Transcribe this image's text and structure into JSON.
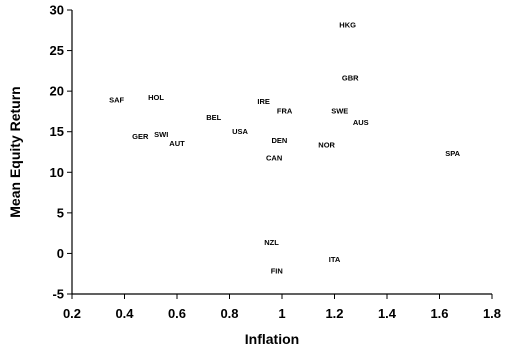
{
  "chart_data": {
    "type": "scatter",
    "title": "",
    "xlabel": "Inflation",
    "ylabel": "Mean Equity Return",
    "xlim": [
      0.2,
      1.8
    ],
    "ylim": [
      -5,
      30
    ],
    "x_ticks": [
      "0.2",
      "0.4",
      "0.6",
      "0.8",
      "1",
      "1.2",
      "1.4",
      "1.6",
      "1.8"
    ],
    "y_ticks": [
      "-5",
      "0",
      "5",
      "10",
      "15",
      "20",
      "25",
      "30"
    ],
    "grid": false,
    "marker": "text-label",
    "points": [
      {
        "label": "HKG",
        "x": 1.25,
        "y": 28.2
      },
      {
        "label": "GBR",
        "x": 1.26,
        "y": 21.7
      },
      {
        "label": "SAF",
        "x": 0.37,
        "y": 19.0
      },
      {
        "label": "HOL",
        "x": 0.52,
        "y": 19.3
      },
      {
        "label": "IRE",
        "x": 0.93,
        "y": 18.8
      },
      {
        "label": "FRA",
        "x": 1.01,
        "y": 17.6
      },
      {
        "label": "SWE",
        "x": 1.22,
        "y": 17.6
      },
      {
        "label": "BEL",
        "x": 0.74,
        "y": 16.8
      },
      {
        "label": "AUS",
        "x": 1.3,
        "y": 16.2
      },
      {
        "label": "USA",
        "x": 0.84,
        "y": 15.1
      },
      {
        "label": "GER",
        "x": 0.46,
        "y": 14.5
      },
      {
        "label": "SWI",
        "x": 0.54,
        "y": 14.7
      },
      {
        "label": "AUT",
        "x": 0.6,
        "y": 13.6
      },
      {
        "label": "DEN",
        "x": 0.99,
        "y": 14.0
      },
      {
        "label": "NOR",
        "x": 1.17,
        "y": 13.4
      },
      {
        "label": "CAN",
        "x": 0.97,
        "y": 11.8
      },
      {
        "label": "SPA",
        "x": 1.65,
        "y": 12.4
      },
      {
        "label": "NZL",
        "x": 0.96,
        "y": 1.4
      },
      {
        "label": "ITA",
        "x": 1.2,
        "y": -0.7
      },
      {
        "label": "FIN",
        "x": 0.98,
        "y": -2.1
      }
    ]
  }
}
